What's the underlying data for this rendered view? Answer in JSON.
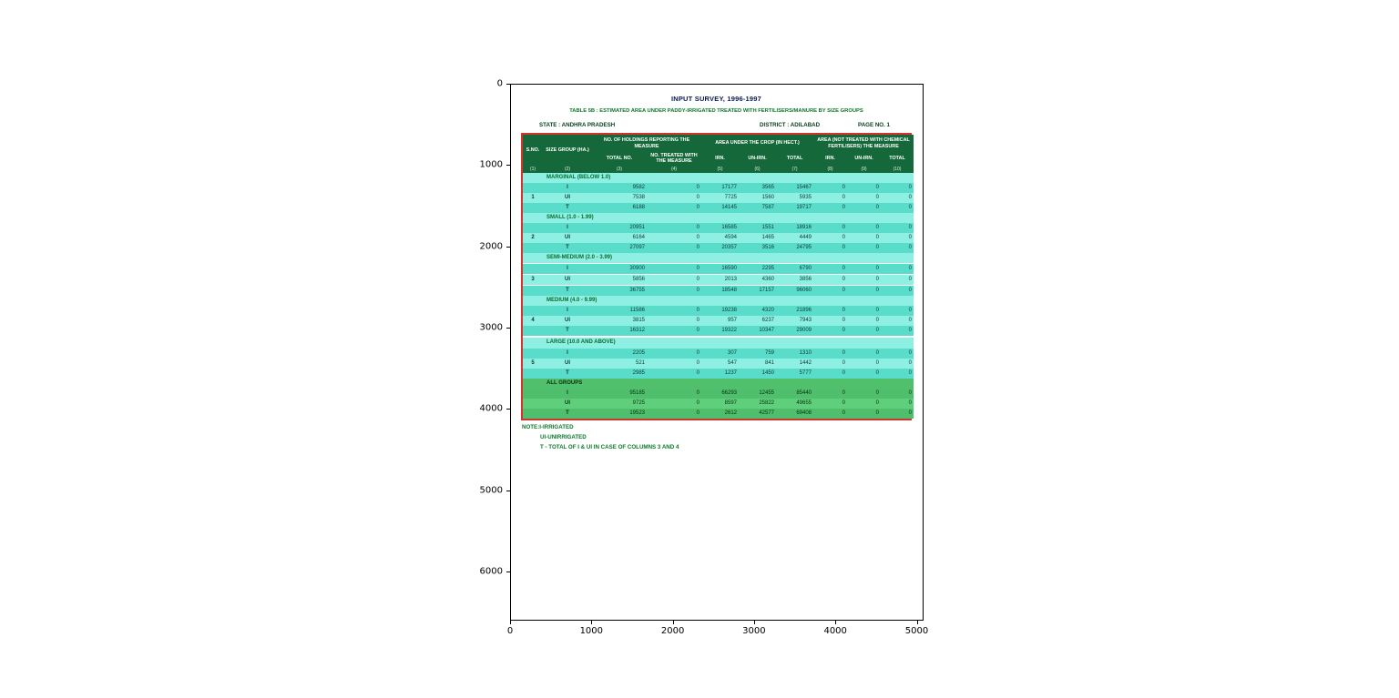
{
  "figure": {
    "x_ticks": [
      "0",
      "1000",
      "2000",
      "3000",
      "4000",
      "5000"
    ],
    "y_ticks": [
      "0",
      "1000",
      "2000",
      "3000",
      "4000",
      "5000",
      "6000"
    ]
  },
  "document": {
    "title": "INPUT SURVEY, 1996-1997",
    "subtitle": "TABLE 5B : ESTIMATED AREA UNDER PADDY-IRRIGATED TREATED WITH FERTILISERS/MANURE BY SIZE GROUPS",
    "state_label": "STATE : ANDHRA PRADESH",
    "district_label": "DISTRICT : ADILABAD",
    "page_label": "PAGE NO. 1",
    "notes": [
      "NOTE:I-IRRIGATED",
      "UI-UNIRRIGATED",
      "T - TOTAL OF I & UI IN CASE OF COLUMNS 3 AND 4"
    ]
  },
  "table": {
    "header": {
      "sno": "S.NO.",
      "size_group": "SIZE GROUP (HA.)",
      "holdings_group": "NO. OF HOLDINGS REPORTING THE MEASURE",
      "holdings_sub": [
        "TOTAL NO.",
        "NO. TREATED WITH THE MEASURE"
      ],
      "area_group": "AREA UNDER THE CROP (IN HECT.)",
      "area_sub": [
        "IRN.",
        "UN-IRN.",
        "TOTAL"
      ],
      "area2_group": "AREA (NOT TREATED WITH CHEMICAL FERTILISERS) THE MEASURE",
      "area2_sub": [
        "IRN.",
        "UN-IRN.",
        "TOTAL"
      ],
      "col_numbers": [
        "(1)",
        "(2)",
        "(3)",
        "(4)",
        "(5)",
        "(6)",
        "(7)",
        "(8)",
        "(9)",
        "(10)"
      ]
    },
    "sections": [
      {
        "sno": "1",
        "label": "MARGINAL (BELOW 1.0)",
        "variant": "cyan",
        "rows": [
          [
            "I",
            "9582",
            "0",
            "17177",
            "3565",
            "15467",
            "0",
            "0",
            "0"
          ],
          [
            "UI",
            "7538",
            "0",
            "7725",
            "1560",
            "5935",
            "0",
            "0",
            "0"
          ],
          [
            "T",
            "6188",
            "0",
            "14145",
            "7587",
            "19717",
            "0",
            "0",
            "0"
          ]
        ]
      },
      {
        "sno": "2",
        "label": "SMALL (1.0 - 1.99)",
        "variant": "cyan",
        "rows": [
          [
            "I",
            "20951",
            "0",
            "16585",
            "1551",
            "18916",
            "0",
            "0",
            "0"
          ],
          [
            "UI",
            "6164",
            "0",
            "4594",
            "1465",
            "4449",
            "0",
            "0",
            "0"
          ],
          [
            "T",
            "27097",
            "0",
            "20357",
            "3516",
            "24795",
            "0",
            "0",
            "0"
          ]
        ]
      },
      {
        "sno": "3",
        "label": "SEMI-MEDIUM (2.0 - 3.99)",
        "variant": "cyan",
        "rows": [
          [
            "I",
            "30900",
            "0",
            "16590",
            "2295",
            "6790",
            "0",
            "0",
            "0"
          ],
          [
            "UI",
            "5856",
            "0",
            "2013",
            "4360",
            "3856",
            "0",
            "0",
            "0"
          ],
          [
            "T",
            "36755",
            "0",
            "18548",
            "17157",
            "96060",
            "0",
            "0",
            "0"
          ]
        ]
      },
      {
        "sno": "4",
        "label": "MEDIUM (4.0 - 9.99)",
        "variant": "cyan",
        "rows": [
          [
            "I",
            "11586",
            "0",
            "19238",
            "4320",
            "21896",
            "0",
            "0",
            "0"
          ],
          [
            "UI",
            "3815",
            "0",
            "957",
            "6237",
            "7943",
            "0",
            "0",
            "0"
          ],
          [
            "T",
            "16312",
            "0",
            "19322",
            "10347",
            "29009",
            "0",
            "0",
            "0"
          ]
        ]
      },
      {
        "sno": "5",
        "label": "LARGE (10.0 AND ABOVE)",
        "variant": "cyan",
        "rows": [
          [
            "I",
            "2205",
            "0",
            "307",
            "759",
            "1310",
            "0",
            "0",
            "0"
          ],
          [
            "UI",
            "521",
            "0",
            "547",
            "841",
            "1442",
            "0",
            "0",
            "0"
          ],
          [
            "T",
            "2985",
            "0",
            "1237",
            "1450",
            "5777",
            "0",
            "0",
            "0"
          ]
        ]
      },
      {
        "sno": "",
        "label": "ALL GROUPS",
        "variant": "green",
        "rows": [
          [
            "I",
            "95185",
            "0",
            "66293",
            "12455",
            "85440",
            "0",
            "0",
            "0"
          ],
          [
            "UI",
            "9725",
            "0",
            "8597",
            "25822",
            "49655",
            "0",
            "0",
            "0"
          ],
          [
            "T",
            "19523",
            "0",
            "2612",
            "42577",
            "69408",
            "0",
            "0",
            "0"
          ]
        ]
      }
    ]
  },
  "colors": {
    "header_green": "#15683a",
    "body_teal_dark": "#5adccb",
    "body_teal_light": "#8df0e2",
    "all_groups_green": "#4fbf6d",
    "border_red": "#d0342c",
    "note_green": "#0a7a2a"
  }
}
